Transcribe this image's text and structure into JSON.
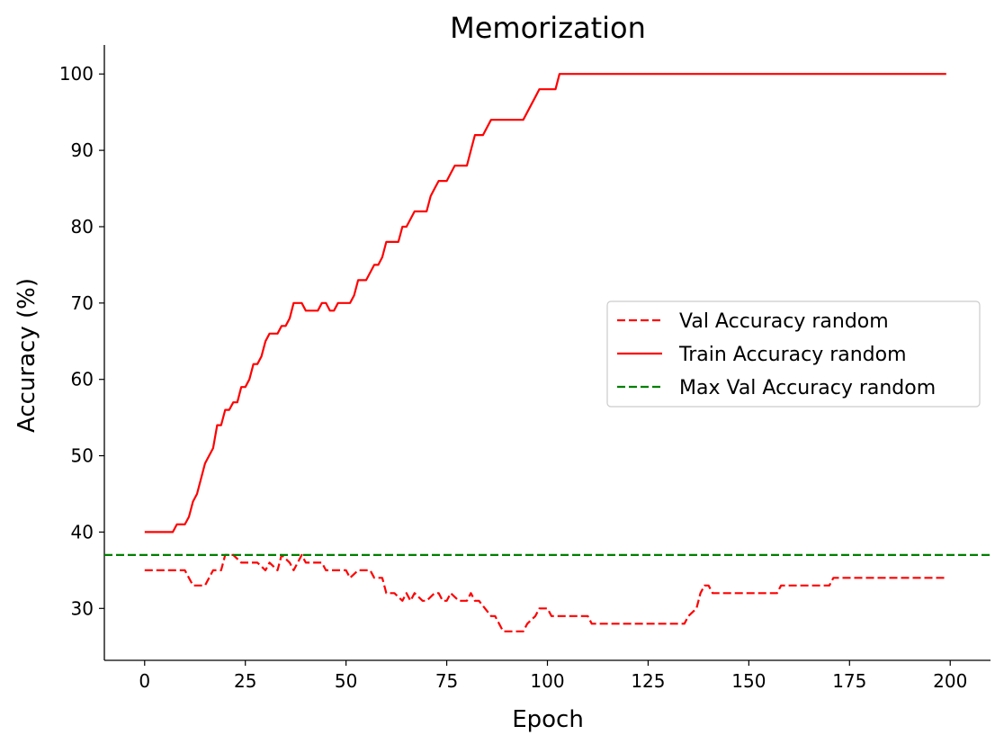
{
  "chart_data": {
    "type": "line",
    "title": "Memorization",
    "xlabel": "Epoch",
    "ylabel": "Accuracy (%)",
    "xlim": [
      -10,
      210
    ],
    "ylim": [
      23.2,
      103.8
    ],
    "xticks": [
      0,
      25,
      50,
      75,
      100,
      125,
      150,
      175,
      200
    ],
    "yticks": [
      30,
      40,
      50,
      60,
      70,
      80,
      90,
      100
    ],
    "grid": false,
    "legend_position": "center-right",
    "series": [
      {
        "name": "Val Accuracy random",
        "color": "#ff0000",
        "style": "dashed",
        "x": [
          0,
          10,
          12,
          15,
          17,
          19,
          20,
          22,
          24,
          28,
          30,
          31,
          33,
          34,
          36,
          37,
          39,
          40,
          44,
          45,
          50,
          51,
          53,
          56,
          57,
          59,
          60,
          62,
          64,
          65,
          66,
          67,
          69,
          70,
          72,
          73,
          74,
          75,
          76,
          78,
          80,
          81,
          82,
          83,
          86,
          87,
          88,
          89,
          90,
          92,
          94,
          95,
          97,
          98,
          100,
          101,
          102,
          106,
          110,
          111,
          112,
          130,
          134,
          135,
          137,
          138,
          139,
          140,
          141,
          157,
          158,
          170,
          171,
          199
        ],
        "y": [
          35,
          35,
          33,
          33,
          35,
          35,
          37,
          37,
          36,
          36,
          35,
          36,
          35,
          37,
          36,
          35,
          37,
          36,
          36,
          35,
          35,
          34,
          35,
          35,
          34,
          34,
          32,
          32,
          31,
          32,
          31,
          32,
          31,
          31,
          32,
          32,
          31,
          31,
          32,
          31,
          31,
          32,
          31,
          31,
          29,
          29,
          28,
          27,
          27,
          27,
          27,
          28,
          29,
          30,
          30,
          29,
          29,
          29,
          29,
          28,
          28,
          28,
          28,
          29,
          30,
          32,
          33,
          33,
          32,
          32,
          33,
          33,
          34,
          34
        ]
      },
      {
        "name": "Train Accuracy random",
        "color": "#ff0000",
        "style": "solid",
        "x": [
          0,
          7,
          8,
          10,
          11,
          12,
          13,
          15,
          17,
          18,
          19,
          20,
          21,
          22,
          23,
          24,
          25,
          26,
          27,
          28,
          29,
          30,
          31,
          32,
          33,
          34,
          35,
          36,
          37,
          38,
          39,
          40,
          41,
          42,
          43,
          44,
          45,
          46,
          47,
          48,
          49,
          50,
          51,
          52,
          53,
          54,
          55,
          56,
          57,
          58,
          59,
          60,
          61,
          62,
          63,
          64,
          65,
          66,
          67,
          68,
          69,
          70,
          71,
          72,
          73,
          74,
          75,
          76,
          77,
          78,
          79,
          80,
          81,
          82,
          83,
          84,
          85,
          86,
          88,
          92,
          93,
          94,
          95,
          96,
          97,
          98,
          102,
          103,
          105,
          199
        ],
        "y": [
          40,
          40,
          41,
          41,
          42,
          44,
          45,
          49,
          51,
          54,
          54,
          56,
          56,
          57,
          57,
          59,
          59,
          60,
          62,
          62,
          63,
          65,
          66,
          66,
          66,
          67,
          67,
          68,
          70,
          70,
          70,
          69,
          69,
          69,
          69,
          70,
          70,
          69,
          69,
          70,
          70,
          70,
          70,
          71,
          73,
          73,
          73,
          74,
          75,
          75,
          76,
          78,
          78,
          78,
          78,
          80,
          80,
          81,
          82,
          82,
          82,
          82,
          84,
          85,
          86,
          86,
          86,
          87,
          88,
          88,
          88,
          88,
          90,
          92,
          92,
          92,
          93,
          94,
          94,
          94,
          94,
          94,
          95,
          96,
          97,
          98,
          98,
          100,
          100,
          100
        ]
      },
      {
        "name": "Max Val Accuracy random",
        "color": "#008000",
        "style": "dashed",
        "hline": 37
      }
    ]
  }
}
